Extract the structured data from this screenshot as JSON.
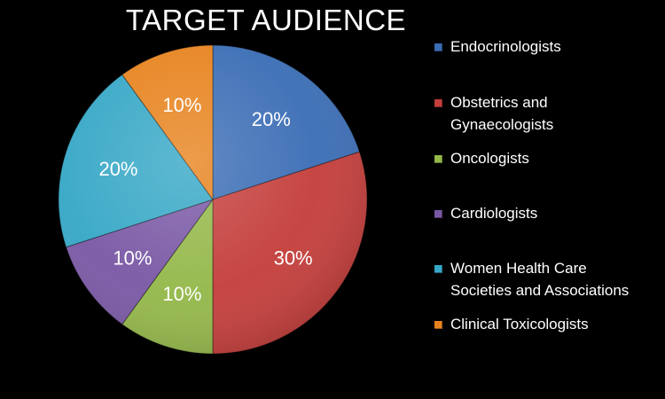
{
  "chart_data": {
    "type": "pie",
    "title": "TARGET AUDIENCE",
    "categories": [
      "Endocrinologists",
      "Obstetrics and Gynaecologists",
      "Oncologists",
      "Cardiologists",
      "Women Health Care Societies and Associations",
      "Clinical Toxicologists"
    ],
    "values": [
      20,
      30,
      10,
      10,
      20,
      10
    ],
    "data_labels": [
      "20%",
      "30%",
      "10%",
      "10%",
      "20%",
      "10%"
    ],
    "colors": [
      "#3b6db5",
      "#c43e3b",
      "#94b84a",
      "#7a58a5",
      "#36a7c6",
      "#e7831e"
    ],
    "legend": [
      {
        "lines": [
          "Endocrinologists"
        ],
        "color": "#3b6db5"
      },
      {
        "lines": [
          "Obstetrics and",
          "Gynaecologists"
        ],
        "color": "#c43e3b"
      },
      {
        "lines": [
          "Oncologists"
        ],
        "color": "#94b84a"
      },
      {
        "lines": [
          "Cardiologists"
        ],
        "color": "#7a58a5"
      },
      {
        "lines": [
          "Women Health Care",
          "Societies and Associations"
        ],
        "color": "#36a7c6"
      },
      {
        "lines": [
          "Clinical Toxicologists"
        ],
        "color": "#e7831e"
      }
    ],
    "legend_position": "right",
    "start": "12 o'clock",
    "direction": "clockwise"
  }
}
